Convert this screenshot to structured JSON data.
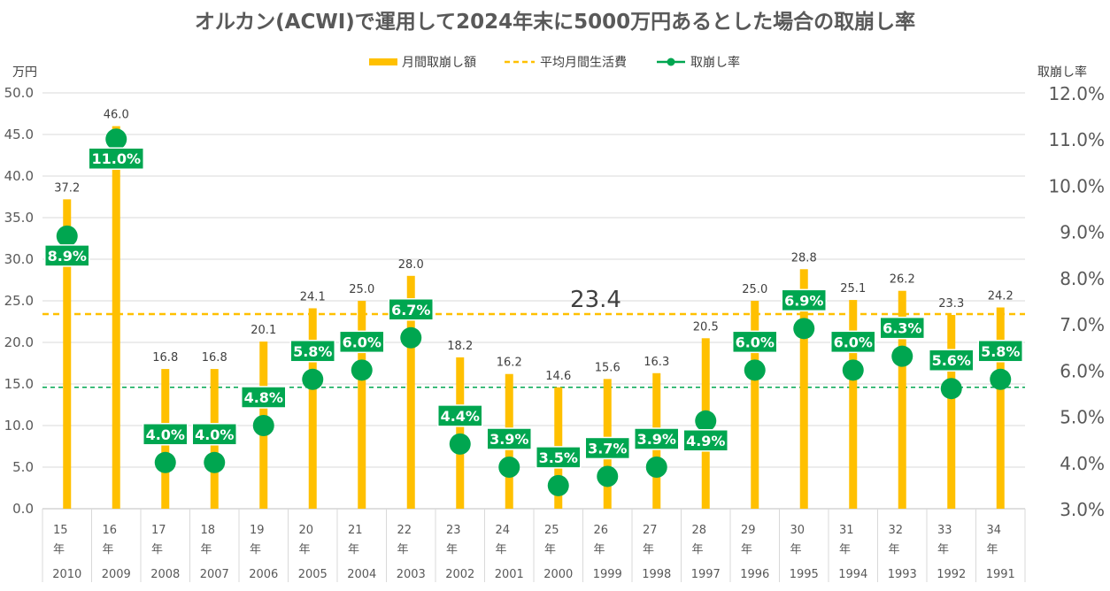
{
  "chart_data": {
    "type": "bar",
    "title": "オルカン(ACWI)で運用して2024年末に5000万円あるとした場合の取崩し率",
    "y_left_unit": "万円",
    "y_right_label": "取崩し率",
    "ylim_left": [
      0,
      50
    ],
    "ylim_right": [
      3.0,
      12.0
    ],
    "yticks_left": [
      "0.0",
      "5.0",
      "10.0",
      "15.0",
      "20.0",
      "25.0",
      "30.0",
      "35.0",
      "40.0",
      "45.0",
      "50.0"
    ],
    "yticks_right": [
      "3.0%",
      "4.0%",
      "5.0%",
      "6.0%",
      "7.0%",
      "8.0%",
      "9.0%",
      "10.0%",
      "11.0%",
      "12.0%"
    ],
    "grid": true,
    "legend_position": "top",
    "legend": [
      "月間取崩し額",
      "平均月間生活費",
      "取崩し率"
    ],
    "categories": [
      "15年",
      "16年",
      "17年",
      "18年",
      "19年",
      "20年",
      "21年",
      "22年",
      "23年",
      "24年",
      "25年",
      "26年",
      "27年",
      "28年",
      "29年",
      "30年",
      "31年",
      "32年",
      "33年",
      "34年"
    ],
    "category_years": [
      "2010",
      "2009",
      "2008",
      "2007",
      "2006",
      "2005",
      "2004",
      "2003",
      "2002",
      "2001",
      "2000",
      "1999",
      "1998",
      "1997",
      "1996",
      "1995",
      "1994",
      "1993",
      "1992",
      "1991"
    ],
    "series": [
      {
        "name": "月間取崩し額",
        "kind": "bar",
        "axis": "left",
        "color": "#FFC000",
        "values": [
          37.2,
          46.0,
          16.8,
          16.8,
          20.1,
          24.1,
          25.0,
          28.0,
          18.2,
          16.2,
          14.6,
          15.6,
          16.3,
          20.5,
          25.0,
          28.8,
          25.1,
          26.2,
          23.3,
          24.2
        ],
        "labels": [
          "37.2",
          "46.0",
          "16.8",
          "16.8",
          "20.1",
          "24.1",
          "25.0",
          "28.0",
          "18.2",
          "16.2",
          "14.6",
          "15.6",
          "16.3",
          "20.5",
          "25.0",
          "28.8",
          "25.1",
          "26.2",
          "23.3",
          "24.2"
        ]
      },
      {
        "name": "取崩し率",
        "kind": "points",
        "axis": "right",
        "color": "#00A650",
        "values": [
          8.9,
          11.0,
          4.0,
          4.0,
          4.8,
          5.8,
          6.0,
          6.7,
          4.4,
          3.9,
          3.5,
          3.7,
          3.9,
          4.9,
          6.0,
          6.9,
          6.0,
          6.3,
          5.6,
          5.8
        ],
        "labels": [
          "8.9%",
          "11.0%",
          "4.0%",
          "4.0%",
          "4.8%",
          "5.8%",
          "6.0%",
          "6.7%",
          "4.4%",
          "3.9%",
          "3.5%",
          "3.7%",
          "3.9%",
          "4.9%",
          "6.0%",
          "6.9%",
          "6.0%",
          "6.3%",
          "5.6%",
          "5.8%"
        ],
        "label_placement": [
          "below",
          "below",
          "above",
          "above",
          "above",
          "above",
          "above",
          "above",
          "above",
          "above",
          "above",
          "above",
          "above",
          "below",
          "above",
          "above",
          "above",
          "above",
          "above",
          "above"
        ]
      }
    ],
    "reference_lines": [
      {
        "name": "平均月間生活費",
        "axis": "left",
        "value": 23.4,
        "color": "#FFC000",
        "style": "dashed",
        "label": "23.4"
      },
      {
        "axis": "left",
        "value": 14.6,
        "color": "#00A650",
        "style": "dashed"
      }
    ]
  }
}
